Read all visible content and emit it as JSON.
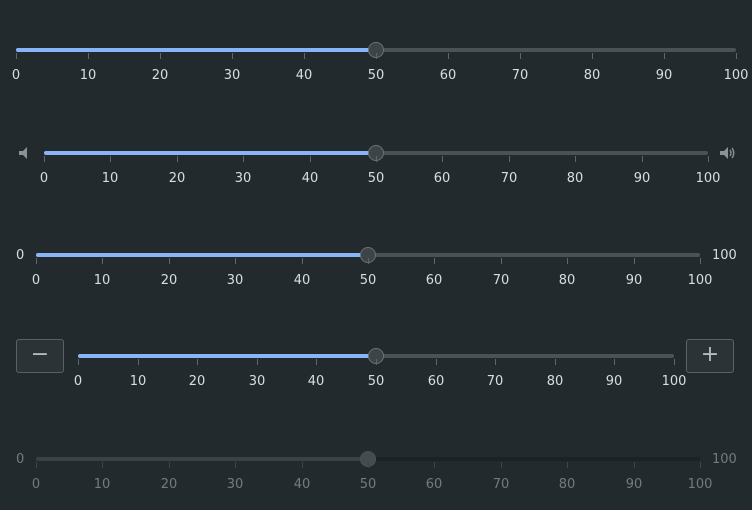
{
  "sliders": [
    {
      "id": "plain",
      "value": 50,
      "min": 0,
      "max": 100,
      "ticks": [
        "0",
        "10",
        "20",
        "30",
        "40",
        "50",
        "60",
        "70",
        "80",
        "90",
        "100"
      ],
      "enabled": true
    },
    {
      "id": "volume",
      "value": 50,
      "min": 0,
      "max": 100,
      "ticks": [
        "0",
        "10",
        "20",
        "30",
        "40",
        "50",
        "60",
        "70",
        "80",
        "90",
        "100"
      ],
      "enabled": true,
      "left_icon": "volume-low-icon",
      "right_icon": "volume-high-icon"
    },
    {
      "id": "range-labeled",
      "value": 50,
      "min": 0,
      "max": 100,
      "ticks": [
        "0",
        "10",
        "20",
        "30",
        "40",
        "50",
        "60",
        "70",
        "80",
        "90",
        "100"
      ],
      "enabled": true,
      "min_label": "0",
      "max_label": "100"
    },
    {
      "id": "stepper",
      "value": 50,
      "min": 0,
      "max": 100,
      "ticks": [
        "0",
        "10",
        "20",
        "30",
        "40",
        "50",
        "60",
        "70",
        "80",
        "90",
        "100"
      ],
      "enabled": true,
      "decrement_label": "−",
      "increment_label": "+"
    },
    {
      "id": "disabled",
      "value": 50,
      "min": 0,
      "max": 100,
      "ticks": [
        "0",
        "10",
        "20",
        "30",
        "40",
        "50",
        "60",
        "70",
        "80",
        "90",
        "100"
      ],
      "enabled": false,
      "min_label": "0",
      "max_label": "100"
    }
  ],
  "colors": {
    "background": "#232a2e",
    "accent": "#8ab4f8",
    "track": "#4a5256"
  }
}
